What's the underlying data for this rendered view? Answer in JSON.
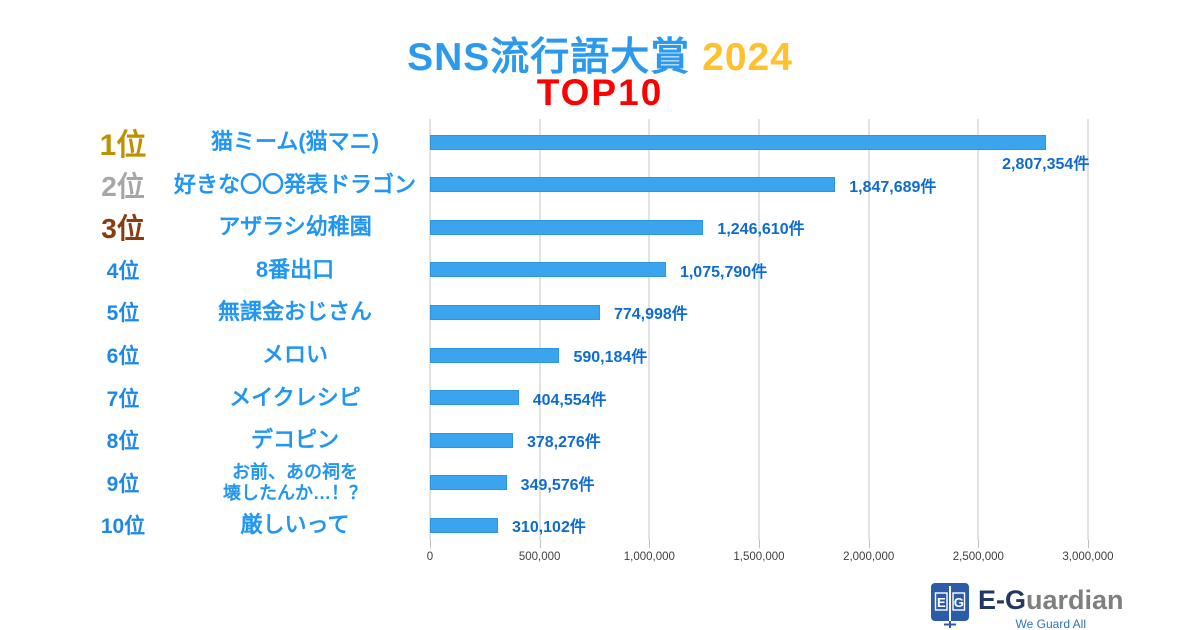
{
  "title": {
    "main": "SNS流行語大賞",
    "year": "2024",
    "sub": "TOP10"
  },
  "colors": {
    "title_main": "#2B9AEE",
    "title_year": "#FFC12E",
    "title_sub": "#FF0000",
    "bar_fill": "#3AA5EE",
    "bar_border": "#2E96DC",
    "value_label": "#0E6CCE",
    "item_label": "#2196F3",
    "rank_gold": "#BF9000",
    "rank_silver": "#A6A6A6",
    "rank_bronze": "#8B3C0E",
    "rank_default": "#1E88E5",
    "grid_line": "#E2E2E2",
    "tick_label": "#404040",
    "brand_navy": "#1F3864",
    "brand_gray": "#7F7F7F",
    "brand_tagline": "#2E75B6",
    "logo_blue": "#2B5CA7"
  },
  "chart_data": {
    "type": "bar",
    "orientation": "horizontal",
    "title": "SNS流行語大賞 2024 TOP10",
    "unit": "件",
    "xlim": [
      0,
      3000000
    ],
    "x_ticks": [
      0,
      500000,
      1000000,
      1500000,
      2000000,
      2500000,
      3000000
    ],
    "x_tick_labels": [
      "0",
      "500,000",
      "1,000,000",
      "1,500,000",
      "2,000,000",
      "2,500,000",
      "3,000,000"
    ],
    "grid": true,
    "legend": false,
    "rows": [
      {
        "rank": "1位",
        "name": "猫ミーム(猫マニ)",
        "value": 2807354,
        "label": "2,807,354件"
      },
      {
        "rank": "2位",
        "name": "好きな〇〇発表ドラゴン",
        "value": 1847689,
        "label": "1,847,689件"
      },
      {
        "rank": "3位",
        "name": "アザラシ幼稚園",
        "value": 1246610,
        "label": "1,246,610件"
      },
      {
        "rank": "4位",
        "name": "8番出口",
        "value": 1075790,
        "label": "1,075,790件"
      },
      {
        "rank": "5位",
        "name": "無課金おじさん",
        "value": 774998,
        "label": "774,998件"
      },
      {
        "rank": "6位",
        "name": "メロい",
        "value": 590184,
        "label": "590,184件"
      },
      {
        "rank": "7位",
        "name": "メイクレシピ",
        "value": 404554,
        "label": "404,554件"
      },
      {
        "rank": "8位",
        "name": "デコピン",
        "value": 378276,
        "label": "378,276件"
      },
      {
        "rank": "9位",
        "name": "お前、あの祠を\n壊したんか…！？",
        "value": 349576,
        "label": "349,576件"
      },
      {
        "rank": "10位",
        "name": "厳しいって",
        "value": 310102,
        "label": "310,102件"
      }
    ]
  },
  "footer": {
    "logo_monogram": "E|G",
    "brand_prefix": "E-G",
    "brand_suffix": "uardian",
    "tagline": "We Guard All"
  }
}
